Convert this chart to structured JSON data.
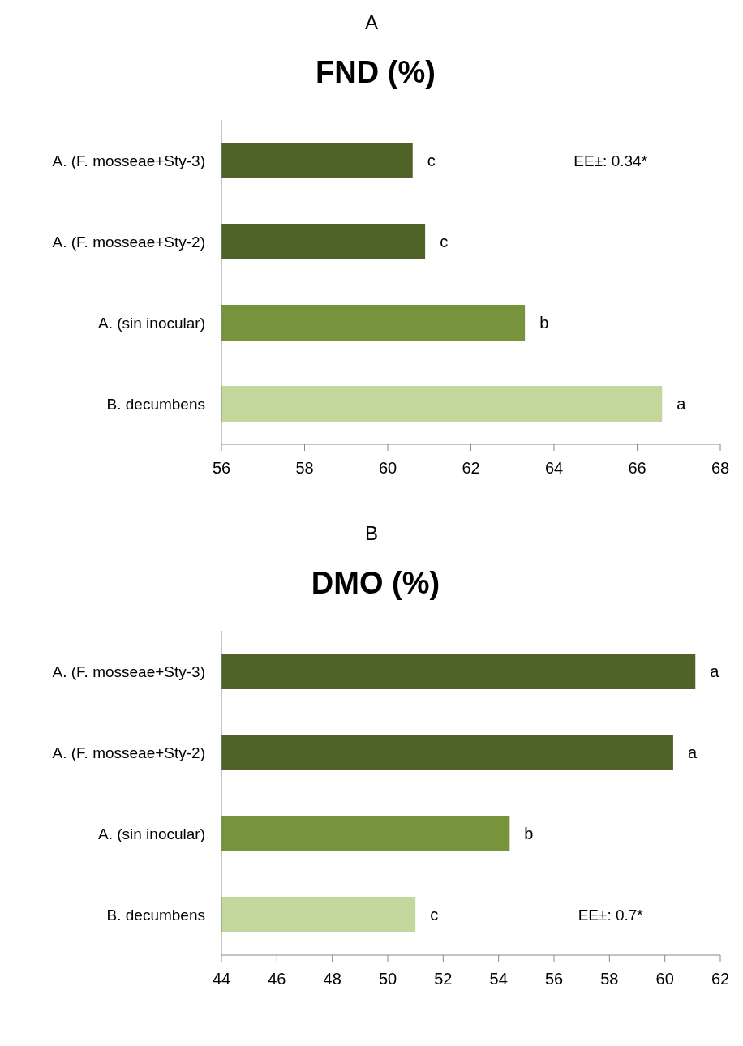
{
  "chart_data": [
    {
      "type": "bar",
      "orientation": "horizontal",
      "title": "FND (%)",
      "annotations": [
        "A",
        "EE±: 0.34*"
      ],
      "categories": [
        "A. (F. mosseae+Sty-3)",
        "A. (F. mosseae+Sty-2)",
        "A. (sin inocular)",
        "B. decumbens"
      ],
      "values": [
        60.6,
        60.9,
        63.3,
        66.6
      ],
      "colors": [
        "#4f6228",
        "#4f6228",
        "#77933c",
        "#c3d69b"
      ],
      "value_labels": [
        "c",
        "c",
        "b",
        "a"
      ],
      "xlim": [
        56,
        68
      ],
      "xticks": [
        56,
        58,
        60,
        62,
        64,
        66,
        68
      ],
      "grid": false,
      "legend": false
    },
    {
      "type": "bar",
      "orientation": "horizontal",
      "title": "DMO (%)",
      "annotations": [
        "B",
        "EE±: 0.7*"
      ],
      "categories": [
        "A. (F. mosseae+Sty-3)",
        "A. (F. mosseae+Sty-2)",
        "A. (sin inocular)",
        "B. decumbens"
      ],
      "values": [
        61.1,
        60.3,
        54.4,
        51.0
      ],
      "colors": [
        "#4f6228",
        "#4f6228",
        "#77933c",
        "#c3d69b"
      ],
      "value_labels": [
        "a",
        "a",
        "b",
        "c"
      ],
      "xlim": [
        44,
        62
      ],
      "xticks": [
        44,
        46,
        48,
        50,
        52,
        54,
        56,
        58,
        60,
        62
      ],
      "grid": false,
      "legend": false
    }
  ]
}
